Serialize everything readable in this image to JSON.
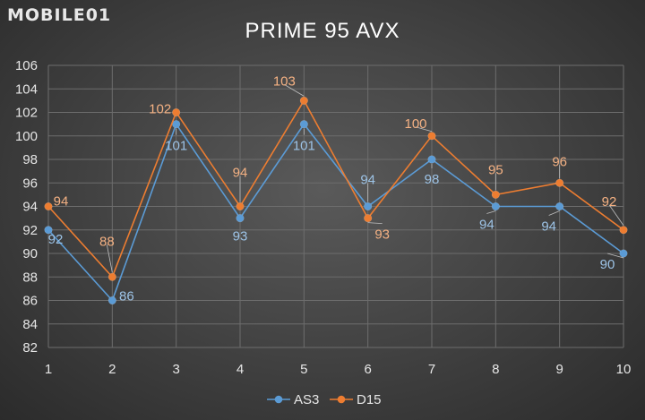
{
  "logo": "MOBILE01",
  "chart_data": {
    "type": "line",
    "title": "PRIME 95 AVX",
    "x": [
      1,
      2,
      3,
      4,
      5,
      6,
      7,
      8,
      9,
      10
    ],
    "ylim": [
      82,
      106
    ],
    "yticks": [
      82,
      84,
      86,
      88,
      90,
      92,
      94,
      96,
      98,
      100,
      102,
      104,
      106
    ],
    "grid": true,
    "legend": "bottom-center",
    "series": [
      {
        "name": "AS3",
        "color": "#5b9bd5",
        "label_color": "#9dc3e6",
        "values": [
          92,
          86,
          101,
          93,
          101,
          94,
          98,
          94,
          94,
          90
        ]
      },
      {
        "name": "D15",
        "color": "#ed7d31",
        "label_color": "#f4b183",
        "values": [
          94,
          88,
          102,
          94,
          103,
          93,
          100,
          95,
          96,
          92
        ]
      }
    ]
  }
}
